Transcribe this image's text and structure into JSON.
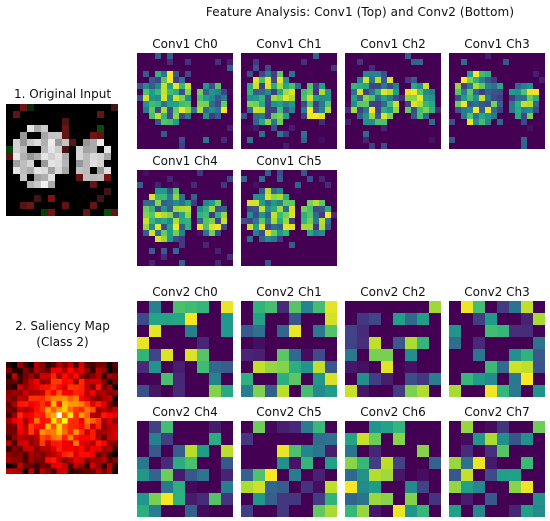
{
  "figure": {
    "title": "Feature Analysis: Conv1 (Top) and Conv2 (Bottom)"
  },
  "left_panels": [
    {
      "title_lines": [
        "1. Original Input"
      ],
      "colormap": "gray-noise"
    },
    {
      "title_lines": [
        "2. Saliency Map",
        "(Class 2)"
      ],
      "colormap": "hot"
    }
  ],
  "conv1": {
    "resolution": 16,
    "colormap": "viridis",
    "channels": [
      "Conv1 Ch0",
      "Conv1 Ch1",
      "Conv1 Ch2",
      "Conv1 Ch3",
      "Conv1 Ch4",
      "Conv1 Ch5"
    ]
  },
  "conv2": {
    "resolution": 8,
    "colormap": "viridis",
    "channels": [
      "Conv2 Ch0",
      "Conv2 Ch1",
      "Conv2 Ch2",
      "Conv2 Ch3",
      "Conv2 Ch4",
      "Conv2 Ch5",
      "Conv2 Ch6",
      "Conv2 Ch7"
    ]
  },
  "colors": {
    "viridis_low": "#440154",
    "viridis_mid": "#21918c",
    "viridis_high": "#fde725",
    "hot_low": "#000000",
    "hot_high": "#ffffff"
  }
}
